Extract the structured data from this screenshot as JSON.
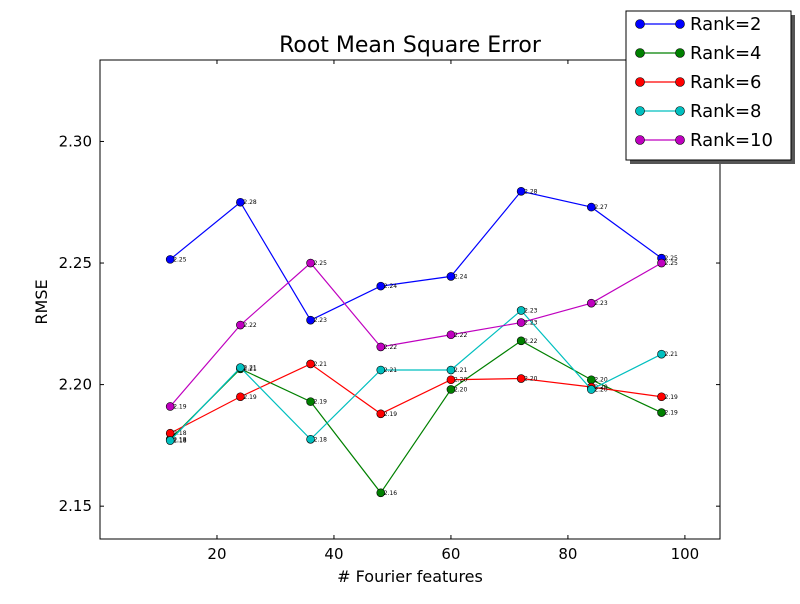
{
  "chart_data": {
    "type": "line",
    "title": "Root Mean Square Error",
    "xlabel": "# Fourier features",
    "ylabel": "RMSE",
    "x": [
      12,
      24,
      36,
      48,
      60,
      72,
      84,
      96
    ],
    "xlim": [
      0,
      106
    ],
    "ylim": [
      2.1365,
      2.3335
    ],
    "xticks": [
      20,
      40,
      60,
      80,
      100
    ],
    "xtick_labels": [
      "20",
      "40",
      "60",
      "80",
      "100"
    ],
    "yticks": [
      2.15,
      2.2,
      2.25,
      2.3
    ],
    "ytick_labels": [
      "2.15",
      "2.20",
      "2.25",
      "2.30"
    ],
    "legend_position": "top-right",
    "grid": false,
    "series": [
      {
        "name": "Rank=2",
        "color": "#0000ff",
        "values": [
          2.2515,
          2.275,
          2.2265,
          2.2405,
          2.2445,
          2.2795,
          2.273,
          2.252
        ],
        "labels": [
          "2.25",
          "2.28",
          "2.23",
          "2.24",
          "2.24",
          "2.28",
          "2.27",
          "2.25"
        ]
      },
      {
        "name": "Rank=4",
        "color": "#008000",
        "values": [
          2.1775,
          2.2065,
          2.193,
          2.1555,
          2.198,
          2.218,
          2.202,
          2.1885
        ],
        "labels": [
          "2.18",
          "2.21",
          "2.19",
          "2.16",
          "2.20",
          "2.22",
          "2.20",
          "2.19"
        ]
      },
      {
        "name": "Rank=6",
        "color": "#ff0000",
        "values": [
          2.18,
          2.195,
          2.2085,
          2.188,
          2.202,
          2.2025,
          2.199,
          2.195
        ],
        "labels": [
          "2.18",
          "2.19",
          "2.21",
          "2.19",
          "2.20",
          "2.20",
          "2.20",
          "2.19"
        ]
      },
      {
        "name": "Rank=8",
        "color": "#00bfbf",
        "values": [
          2.177,
          2.207,
          2.1775,
          2.206,
          2.206,
          2.2305,
          2.198,
          2.2125
        ],
        "labels": [
          "2.18",
          "2.21",
          "2.18",
          "2.21",
          "2.21",
          "2.23",
          "2.20",
          "2.21"
        ]
      },
      {
        "name": "Rank=10",
        "color": "#bf00bf",
        "values": [
          2.191,
          2.2245,
          2.25,
          2.2155,
          2.2205,
          2.2255,
          2.2335,
          2.25
        ],
        "labels": [
          "2.19",
          "2.22",
          "2.25",
          "2.22",
          "2.22",
          "2.23",
          "2.23",
          "2.25"
        ]
      }
    ]
  }
}
